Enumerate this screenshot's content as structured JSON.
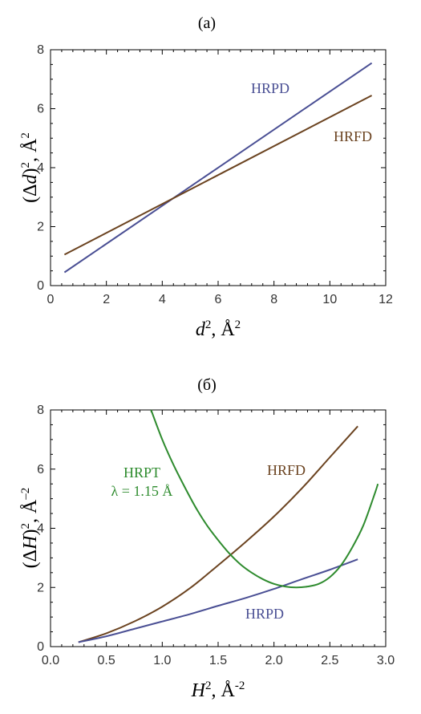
{
  "chart_data": [
    {
      "type": "line",
      "title": "(a)",
      "xlabel": {
        "base": "d",
        "sup": "2",
        "unit": ", Å",
        "unit_sup": "2"
      },
      "ylabel": {
        "prefix": "(Δ",
        "var": "d",
        "suffix": ")",
        "sup": "2",
        "unit": ", Å",
        "unit_sup": "2"
      },
      "xlim": [
        0,
        12
      ],
      "ylim": [
        0,
        8
      ],
      "xticks": [
        "0",
        "2",
        "4",
        "6",
        "8",
        "10",
        "12"
      ],
      "yticks": [
        "0",
        "2",
        "4",
        "6",
        "8"
      ],
      "grid": false,
      "series": [
        {
          "name": "HRPD",
          "color": "#4a4f94",
          "x": [
            0.5,
            11.5
          ],
          "y": [
            0.45,
            7.55
          ]
        },
        {
          "name": "HRFD",
          "color": "#6b4320",
          "x": [
            0.5,
            11.5
          ],
          "y": [
            1.05,
            6.45
          ]
        }
      ]
    },
    {
      "type": "line",
      "title": "(б)",
      "xlabel": {
        "base": "H",
        "sup": "2",
        "unit": ", Å",
        "unit_sup": "-2"
      },
      "ylabel": {
        "prefix": "(Δ",
        "var": "H",
        "suffix": ")",
        "sup": "2",
        "unit": ", Å",
        "unit_sup": "–2"
      },
      "xlim": [
        0,
        3
      ],
      "ylim": [
        0,
        8
      ],
      "xticks": [
        "0.0",
        "0.5",
        "1.0",
        "1.5",
        "2.0",
        "2.5",
        "3.0"
      ],
      "yticks": [
        "0",
        "2",
        "4",
        "6",
        "8"
      ],
      "grid": false,
      "series": [
        {
          "name": "HRFD",
          "color": "#6b4320",
          "x": [
            0.25,
            0.5,
            0.75,
            1.0,
            1.25,
            1.5,
            1.75,
            2.0,
            2.25,
            2.5,
            2.75
          ],
          "y": [
            0.15,
            0.45,
            0.85,
            1.35,
            1.98,
            2.75,
            3.55,
            4.4,
            5.35,
            6.4,
            7.45
          ]
        },
        {
          "name": "HRPD",
          "color": "#4a4f94",
          "x": [
            0.25,
            0.5,
            0.75,
            1.0,
            1.25,
            1.5,
            1.75,
            2.0,
            2.25,
            2.5,
            2.75
          ],
          "y": [
            0.15,
            0.35,
            0.6,
            0.85,
            1.1,
            1.38,
            1.65,
            1.95,
            2.28,
            2.6,
            2.95
          ]
        },
        {
          "name": "HRPT",
          "name2": "λ = 1.15 Å",
          "color": "#2e8b2e",
          "x": [
            0.9,
            1.0,
            1.1,
            1.2,
            1.3,
            1.4,
            1.5,
            1.6,
            1.7,
            1.8,
            1.9,
            2.0,
            2.1,
            2.2,
            2.3,
            2.4,
            2.5,
            2.6,
            2.7,
            2.8,
            2.9,
            2.93
          ],
          "y": [
            8.0,
            7.0,
            6.15,
            5.4,
            4.7,
            4.1,
            3.6,
            3.15,
            2.78,
            2.5,
            2.28,
            2.12,
            2.03,
            2.0,
            2.03,
            2.12,
            2.35,
            2.75,
            3.35,
            4.1,
            5.15,
            5.5
          ]
        }
      ]
    }
  ]
}
